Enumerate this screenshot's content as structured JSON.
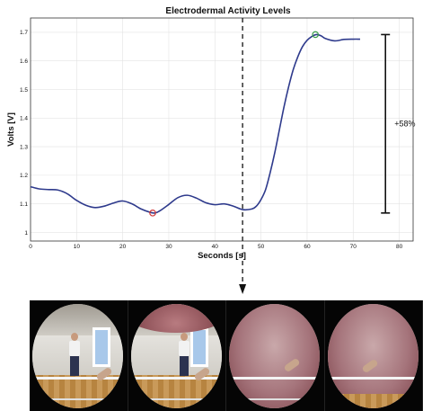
{
  "chart_data": {
    "type": "line",
    "title": "Electrodermal Activity Levels",
    "xlabel": "Seconds [s]",
    "ylabel": "Volts [V]",
    "xlim": [
      0,
      83
    ],
    "ylim": [
      0.97,
      1.75
    ],
    "xticks": [
      0,
      10,
      20,
      30,
      40,
      50,
      60,
      70,
      80
    ],
    "yticks": [
      1,
      1.1,
      1.2,
      1.3,
      1.4,
      1.5,
      1.6,
      1.7
    ],
    "grid": true,
    "series": [
      {
        "color": "#2e3a8c",
        "x": [
          0,
          2,
          4,
          6,
          8,
          10,
          12,
          14,
          16,
          18,
          20,
          22,
          24,
          26,
          27,
          28,
          30,
          32,
          34,
          36,
          38,
          40,
          42,
          44,
          46,
          48,
          49,
          50,
          51,
          52,
          53,
          54,
          55,
          56,
          57,
          58,
          59,
          60,
          61,
          62,
          63,
          64,
          66,
          68,
          70,
          71.5
        ],
        "y": [
          1.16,
          1.152,
          1.15,
          1.148,
          1.135,
          1.112,
          1.095,
          1.087,
          1.092,
          1.103,
          1.11,
          1.1,
          1.082,
          1.07,
          1.068,
          1.075,
          1.098,
          1.122,
          1.13,
          1.12,
          1.104,
          1.097,
          1.1,
          1.092,
          1.08,
          1.082,
          1.092,
          1.115,
          1.15,
          1.21,
          1.28,
          1.36,
          1.44,
          1.51,
          1.57,
          1.615,
          1.65,
          1.672,
          1.685,
          1.692,
          1.688,
          1.678,
          1.67,
          1.675,
          1.676,
          1.676
        ]
      }
    ],
    "markers": [
      {
        "x": 26.5,
        "y": 1.068,
        "color": "#d23a3a"
      },
      {
        "x": 61.8,
        "y": 1.692,
        "color": "#3a9e4a"
      }
    ],
    "annotations": {
      "event_x": 46,
      "range_bar": {
        "x": 77,
        "y_low": 1.068,
        "y_high": 1.692,
        "label": "+58%"
      }
    }
  },
  "frames": [
    {
      "scene": "room"
    },
    {
      "scene": "room-membrane"
    },
    {
      "scene": "membrane"
    },
    {
      "scene": "membrane"
    }
  ]
}
